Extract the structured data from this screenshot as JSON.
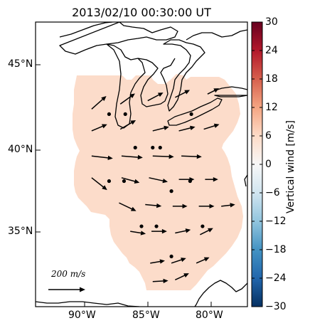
{
  "title": "2013/02/10 00:30:00 UT",
  "latitude_labels": [
    "45°N",
    "40°N",
    "35°N"
  ],
  "longitude_labels": [
    "90°W",
    "85°W",
    "80°W"
  ],
  "colorbar": {
    "label": "Vertical wind [m/s]",
    "ticks": [
      "30",
      "24",
      "18",
      "12",
      "6",
      "0",
      "−6",
      "−12",
      "−18",
      "−24",
      "−30"
    ],
    "min": -30,
    "max": 30,
    "colormap": "RdBu_r"
  },
  "scale_arrow": {
    "label": "200 m/s",
    "value": 200
  },
  "region_fill_color": "#fcdcca",
  "map_extent": {
    "lon_min": -94,
    "lon_max": -77,
    "lat_min": 30.5,
    "lat_max": 47.5
  },
  "chart_data": {
    "type": "map",
    "title": "2013/02/10 00:30:00 UT",
    "region_value_mps": 3,
    "station_points": [
      {
        "lon": -88.1,
        "lat": 42.0
      },
      {
        "lon": -86.8,
        "lat": 42.0
      },
      {
        "lon": -81.5,
        "lat": 42.0
      },
      {
        "lon": -86.0,
        "lat": 40.0
      },
      {
        "lon": -84.6,
        "lat": 40.0
      },
      {
        "lon": -84.0,
        "lat": 40.0
      },
      {
        "lon": -88.1,
        "lat": 38.0
      },
      {
        "lon": -86.9,
        "lat": 38.0
      },
      {
        "lon": -83.1,
        "lat": 37.4
      },
      {
        "lon": -81.6,
        "lat": 38.0
      },
      {
        "lon": -85.5,
        "lat": 35.3
      },
      {
        "lon": -84.3,
        "lat": 35.3
      },
      {
        "lon": -80.6,
        "lat": 35.3
      },
      {
        "lon": -83.1,
        "lat": 33.5
      }
    ],
    "wind_vectors": [
      {
        "lon": -89.5,
        "lat": 42.3,
        "u": 90,
        "v": 80
      },
      {
        "lon": -87.2,
        "lat": 42.6,
        "u": 90,
        "v": 65
      },
      {
        "lon": -85.0,
        "lat": 42.8,
        "u": 95,
        "v": 50
      },
      {
        "lon": -82.8,
        "lat": 43.0,
        "u": 90,
        "v": 45
      },
      {
        "lon": -80.2,
        "lat": 43.2,
        "u": 70,
        "v": 35
      },
      {
        "lon": -89.5,
        "lat": 41.0,
        "u": 95,
        "v": 40
      },
      {
        "lon": -87.2,
        "lat": 41.1,
        "u": 95,
        "v": 55
      },
      {
        "lon": -84.6,
        "lat": 41.0,
        "u": 100,
        "v": 25
      },
      {
        "lon": -82.5,
        "lat": 41.0,
        "u": 100,
        "v": 25
      },
      {
        "lon": -80.5,
        "lat": 41.1,
        "u": 95,
        "v": 30
      },
      {
        "lon": -89.5,
        "lat": 39.5,
        "u": 130,
        "v": -15
      },
      {
        "lon": -87.1,
        "lat": 39.5,
        "u": 130,
        "v": -10
      },
      {
        "lon": -84.6,
        "lat": 39.5,
        "u": 130,
        "v": -5
      },
      {
        "lon": -82.3,
        "lat": 39.5,
        "u": 125,
        "v": -5
      },
      {
        "lon": -89.5,
        "lat": 38.2,
        "u": 95,
        "v": -75
      },
      {
        "lon": -87.1,
        "lat": 38.2,
        "u": 110,
        "v": -30
      },
      {
        "lon": -84.9,
        "lat": 38.2,
        "u": 115,
        "v": -25
      },
      {
        "lon": -82.5,
        "lat": 38.1,
        "u": 95,
        "v": 0
      },
      {
        "lon": -80.4,
        "lat": 38.1,
        "u": 80,
        "v": 0
      },
      {
        "lon": -87.3,
        "lat": 36.7,
        "u": 105,
        "v": -50
      },
      {
        "lon": -85.2,
        "lat": 36.6,
        "u": 100,
        "v": -10
      },
      {
        "lon": -83.0,
        "lat": 36.5,
        "u": 90,
        "v": 0
      },
      {
        "lon": -80.9,
        "lat": 36.5,
        "u": 95,
        "v": 0
      },
      {
        "lon": -79.1,
        "lat": 36.5,
        "u": 85,
        "v": 10
      },
      {
        "lon": -86.4,
        "lat": 35.0,
        "u": 95,
        "v": -15
      },
      {
        "lon": -84.7,
        "lat": 35.0,
        "u": 95,
        "v": 0
      },
      {
        "lon": -82.8,
        "lat": 34.9,
        "u": 95,
        "v": 20
      },
      {
        "lon": -80.8,
        "lat": 34.8,
        "u": 80,
        "v": 40
      },
      {
        "lon": -84.8,
        "lat": 33.1,
        "u": 90,
        "v": 15
      },
      {
        "lon": -83.1,
        "lat": 33.1,
        "u": 90,
        "v": 30
      },
      {
        "lon": -81.1,
        "lat": 33.1,
        "u": 80,
        "v": 35
      },
      {
        "lon": -84.6,
        "lat": 32.0,
        "u": 95,
        "v": 5
      },
      {
        "lon": -82.8,
        "lat": 32.1,
        "u": 85,
        "v": 40
      }
    ]
  }
}
